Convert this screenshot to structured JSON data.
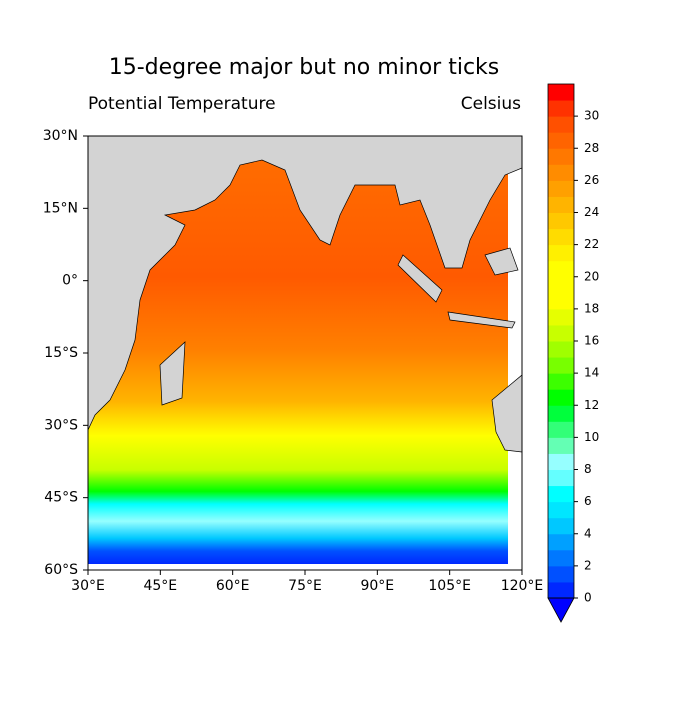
{
  "chart_data": {
    "type": "filled-contour-map",
    "title": "15-degree major but no minor ticks",
    "left_subtitle": "Potential Temperature",
    "right_subtitle": "Celsius",
    "xlim": [
      30,
      120
    ],
    "ylim": [
      -60,
      30
    ],
    "xticks": [
      {
        "value": 30,
        "label": "30°E"
      },
      {
        "value": 45,
        "label": "45°E"
      },
      {
        "value": 60,
        "label": "60°E"
      },
      {
        "value": 75,
        "label": "75°E"
      },
      {
        "value": 90,
        "label": "90°E"
      },
      {
        "value": 105,
        "label": "105°E"
      },
      {
        "value": 120,
        "label": "120°E"
      }
    ],
    "yticks": [
      {
        "value": 30,
        "label": "30°N"
      },
      {
        "value": 15,
        "label": "15°N"
      },
      {
        "value": 0,
        "label": "0°"
      },
      {
        "value": -15,
        "label": "15°S"
      },
      {
        "value": -30,
        "label": "30°S"
      },
      {
        "value": -45,
        "label": "45°S"
      },
      {
        "value": -60,
        "label": "60°S"
      }
    ],
    "colorbar": {
      "lim": [
        0,
        32
      ],
      "ticks": [
        0,
        2,
        4,
        6,
        8,
        10,
        12,
        14,
        16,
        18,
        20,
        22,
        24,
        26,
        28,
        30
      ],
      "colors": [
        "#0028ff",
        "#0050ff",
        "#0078ff",
        "#00a0ff",
        "#00c8ff",
        "#00e6ff",
        "#00ffff",
        "#64ffff",
        "#96ffff",
        "#64ffb4",
        "#32ff78",
        "#00ff3c",
        "#00ff00",
        "#3cff00",
        "#78ff00",
        "#a0ff00",
        "#c8ff00",
        "#e6ff00",
        "#ffff00",
        "#ffff00",
        "#ffff00",
        "#fff000",
        "#ffdc00",
        "#ffc800",
        "#ffb400",
        "#ffa000",
        "#ff8c00",
        "#ff7800",
        "#ff6400",
        "#ff5000",
        "#ff3200",
        "#ff0000"
      ],
      "under_color": "#0000ff"
    }
  }
}
